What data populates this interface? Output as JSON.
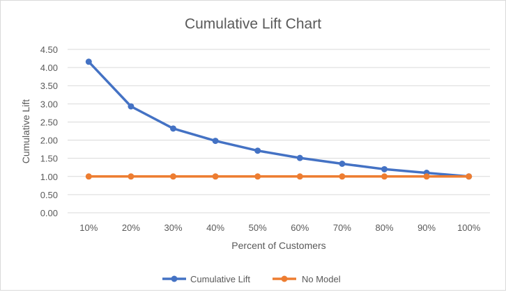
{
  "chart_data": {
    "type": "line",
    "title": "Cumulative Lift Chart",
    "xlabel": "Percent of Customers",
    "ylabel": "Cumulative Lift",
    "categories": [
      "10%",
      "20%",
      "30%",
      "40%",
      "50%",
      "60%",
      "70%",
      "80%",
      "90%",
      "100%"
    ],
    "ylim": [
      0,
      4.5
    ],
    "yticks": [
      "0.00",
      "0.50",
      "1.00",
      "1.50",
      "2.00",
      "2.50",
      "3.00",
      "3.50",
      "4.00",
      "4.50"
    ],
    "grid": true,
    "legend_position": "bottom",
    "series": [
      {
        "name": "Cumulative Lift",
        "color": "#4472c4",
        "values": [
          4.16,
          2.93,
          2.32,
          1.98,
          1.71,
          1.51,
          1.35,
          1.2,
          1.1,
          1.0
        ]
      },
      {
        "name": "No Model",
        "color": "#ed7d31",
        "values": [
          1.0,
          1.0,
          1.0,
          1.0,
          1.0,
          1.0,
          1.0,
          1.0,
          1.0,
          1.0
        ]
      }
    ]
  }
}
